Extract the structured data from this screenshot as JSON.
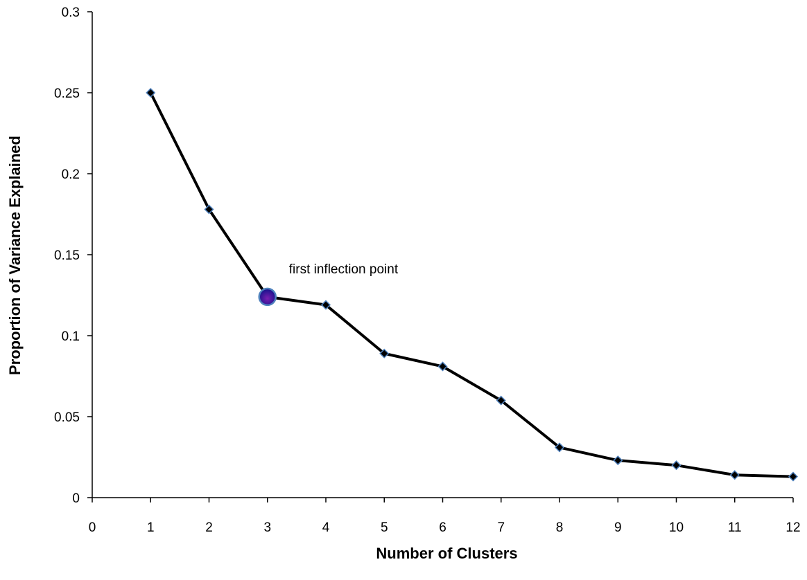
{
  "chart_data": {
    "type": "line",
    "title": "",
    "xlabel": "Number of Clusters",
    "ylabel": "Proportion of Variance Explained",
    "xlim": [
      0,
      12
    ],
    "ylim": [
      0,
      0.3
    ],
    "x_ticks": [
      "0",
      "1",
      "2",
      "3",
      "4",
      "5",
      "6",
      "7",
      "8",
      "9",
      "10",
      "11",
      "12"
    ],
    "y_ticks": [
      "0",
      "0.05",
      "0.1",
      "0.15",
      "0.2",
      "0.25",
      "0.3"
    ],
    "grid": false,
    "legend": "none",
    "series": [
      {
        "x": [
          1,
          2,
          3,
          4,
          5,
          6,
          7,
          8,
          9,
          10,
          11,
          12
        ],
        "values": [
          0.25,
          0.178,
          0.124,
          0.119,
          0.089,
          0.081,
          0.06,
          0.031,
          0.023,
          0.02,
          0.014,
          0.013
        ]
      }
    ],
    "annotations": [
      {
        "text": "first inflection point",
        "x": 3,
        "y": 0.124
      }
    ],
    "colors": {
      "line": "#000000",
      "marker_fill": "#000000",
      "marker_edge": "#4f81bd",
      "highlight_fill": "#1a1a8c",
      "highlight_edge": "#4f81bd"
    }
  }
}
